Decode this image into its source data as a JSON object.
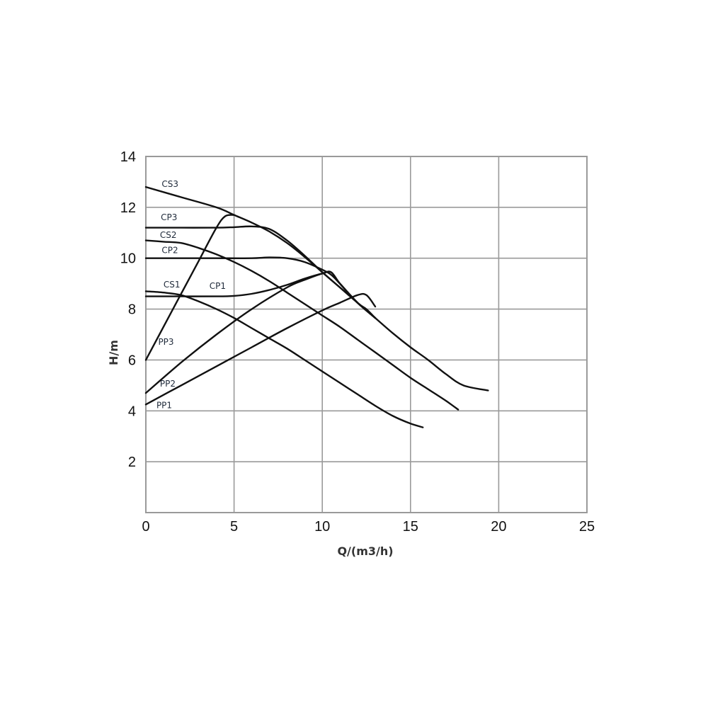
{
  "chart_data": {
    "type": "line",
    "title": "",
    "xlabel": "Q/(m3/h)",
    "ylabel": "H/m",
    "xlim": [
      0,
      25
    ],
    "ylim": [
      0,
      14
    ],
    "xticks": [
      "0",
      "5",
      "10",
      "15",
      "20",
      "25"
    ],
    "yticks": [
      "2",
      "4",
      "6",
      "8",
      "10",
      "12",
      "14"
    ],
    "grid": true,
    "legend": "none",
    "series_color": "#111111",
    "series": [
      {
        "name": "CS3",
        "x": [
          0,
          2,
          4,
          5,
          6,
          7,
          8,
          9,
          10,
          11,
          12,
          13,
          14,
          15,
          16,
          17,
          18,
          19.4
        ],
        "y": [
          12.8,
          12.4,
          12.0,
          11.7,
          11.4,
          11.05,
          10.6,
          10.05,
          9.45,
          8.85,
          8.25,
          7.65,
          7.05,
          6.5,
          6.0,
          5.45,
          5.0,
          4.8
        ]
      },
      {
        "name": "CP3",
        "x": [
          0,
          2,
          4,
          5,
          6,
          7,
          8,
          9,
          10,
          11,
          12,
          13
        ],
        "y": [
          11.2,
          11.2,
          11.2,
          11.22,
          11.25,
          11.15,
          10.7,
          10.1,
          9.45,
          8.85,
          8.25,
          7.65
        ]
      },
      {
        "name": "CS2",
        "x": [
          0,
          1,
          2,
          3,
          4,
          5,
          6,
          7,
          8,
          9,
          10,
          11,
          12,
          13,
          14,
          15,
          16,
          17,
          17.7
        ],
        "y": [
          10.7,
          10.65,
          10.6,
          10.4,
          10.15,
          9.85,
          9.5,
          9.1,
          8.65,
          8.2,
          7.75,
          7.3,
          6.8,
          6.3,
          5.8,
          5.3,
          4.85,
          4.4,
          4.05
        ]
      },
      {
        "name": "CP2",
        "x": [
          0,
          2,
          4,
          6,
          7,
          8,
          9,
          10,
          10.5,
          11,
          12,
          13
        ],
        "y": [
          10.0,
          10.0,
          10.0,
          10.0,
          10.03,
          10.0,
          9.85,
          9.55,
          9.35,
          9.0,
          8.25,
          7.65
        ]
      },
      {
        "name": "CS1",
        "x": [
          0,
          1,
          2,
          3,
          4,
          5,
          6,
          7,
          8,
          9,
          10,
          11,
          12,
          13,
          14,
          15,
          15.7
        ],
        "y": [
          8.7,
          8.65,
          8.55,
          8.3,
          8.0,
          7.65,
          7.25,
          6.85,
          6.45,
          6.0,
          5.55,
          5.1,
          4.65,
          4.2,
          3.8,
          3.5,
          3.35
        ]
      },
      {
        "name": "CP1",
        "x": [
          0,
          2,
          4,
          5,
          6,
          7,
          8,
          9,
          10,
          10.5,
          11,
          12,
          12.5,
          13
        ],
        "y": [
          8.5,
          8.5,
          8.5,
          8.52,
          8.6,
          8.75,
          8.95,
          9.2,
          9.4,
          9.45,
          9.0,
          8.25,
          8.0,
          7.65
        ]
      },
      {
        "name": "PP3",
        "x": [
          0,
          1,
          2,
          3,
          4,
          4.5,
          5
        ],
        "y": [
          6.0,
          7.3,
          8.6,
          9.9,
          11.2,
          11.65,
          11.7
        ]
      },
      {
        "name": "PP2",
        "x": [
          0,
          2,
          4,
          6,
          8,
          9,
          10,
          10.5,
          11,
          12,
          13
        ],
        "y": [
          4.7,
          5.9,
          7.0,
          8.0,
          8.85,
          9.15,
          9.4,
          9.45,
          9.0,
          8.25,
          7.65
        ]
      },
      {
        "name": "PP1",
        "x": [
          0,
          2,
          4,
          6,
          8,
          10,
          11,
          12,
          12.5,
          13
        ],
        "y": [
          4.25,
          5.0,
          5.75,
          6.5,
          7.25,
          7.95,
          8.25,
          8.55,
          8.55,
          8.1
        ]
      }
    ],
    "labels": [
      {
        "text": "CS3",
        "x": 0.9,
        "y": 12.8
      },
      {
        "text": "CP3",
        "x": 0.85,
        "y": 11.5
      },
      {
        "text": "CS2",
        "x": 0.8,
        "y": 10.8
      },
      {
        "text": "CP2",
        "x": 0.9,
        "y": 10.2
      },
      {
        "text": "CS1",
        "x": 1.0,
        "y": 8.85
      },
      {
        "text": "CP1",
        "x": 3.6,
        "y": 8.8
      },
      {
        "text": "PP3",
        "x": 0.7,
        "y": 6.6
      },
      {
        "text": "PP2",
        "x": 0.8,
        "y": 4.95
      },
      {
        "text": "PP1",
        "x": 0.6,
        "y": 4.1
      }
    ]
  }
}
